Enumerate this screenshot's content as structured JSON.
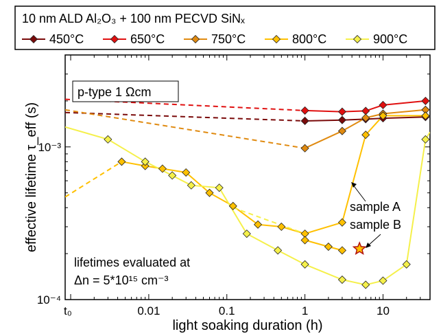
{
  "chart_data": {
    "type": "line",
    "title": "",
    "legend_title": "10 nm ALD Al₂O₃ + 100 nm PECVD SiNₓ",
    "legend_placement": "top",
    "xlabel": "light soaking duration (h)",
    "ylabel": "effective lifetime  τ_eff (s)",
    "x_scale": "log",
    "y_scale": "log",
    "xlim": [
      0.00085,
      40
    ],
    "ylim": [
      0.0001,
      0.004
    ],
    "x_tick_labels": [
      "t₀",
      "0.01",
      "0.1",
      "1",
      "10"
    ],
    "y_tick_labels": [
      "10⁻⁴",
      "10⁻³"
    ],
    "grid": false,
    "series": [
      {
        "name": "450°C",
        "color": "#7a0a0a",
        "marker": "diamond",
        "dashed": {
          "x": [
            0.00085,
            1
          ],
          "y": [
            0.00168,
            0.00148
          ]
        },
        "solid": {
          "x": [
            1,
            3,
            6,
            10,
            35
          ],
          "y": [
            0.00148,
            0.0015,
            0.00152,
            0.00154,
            0.00157
          ]
        }
      },
      {
        "name": "650°C",
        "color": "#e01010",
        "marker": "diamond",
        "dashed": {
          "x": [
            0.00085,
            1
          ],
          "y": [
            0.00205,
            0.00173
          ]
        },
        "solid": {
          "x": [
            1,
            3,
            6,
            10,
            35
          ],
          "y": [
            0.00173,
            0.0017,
            0.00172,
            0.00188,
            0.002
          ]
        }
      },
      {
        "name": "750°C",
        "color": "#e08a10",
        "marker": "diamond",
        "dashed": {
          "x": [
            0.00085,
            1
          ],
          "y": [
            0.00175,
            0.00098
          ]
        },
        "solid": {
          "x": [
            1,
            3,
            6,
            10,
            35
          ],
          "y": [
            0.00098,
            0.00127,
            0.00155,
            0.00165,
            0.00175
          ]
        }
      },
      {
        "name": "800°C",
        "color": "#ffc000",
        "marker": "diamond",
        "dashed": {
          "x": [
            0.00085,
            0.0045
          ],
          "y": [
            0.00047,
            0.0008
          ]
        },
        "solid_A": {
          "x": [
            0.0045,
            0.009,
            0.015,
            0.03,
            0.06,
            0.12,
            0.25,
            0.5,
            1,
            3,
            6,
            10,
            35
          ],
          "y": [
            0.0008,
            0.00075,
            0.00072,
            0.00068,
            0.0005,
            0.00041,
            0.00031,
            0.0003,
            0.00027,
            0.00032,
            0.0012,
            0.0016,
            0.0016
          ]
        },
        "solid_B": {
          "x": [
            1,
            2,
            3
          ],
          "y": [
            0.000245,
            0.000222,
            0.00021
          ]
        },
        "star": {
          "x": 5,
          "y": 0.000215
        }
      },
      {
        "name": "900°C",
        "color": "#f5f04a",
        "marker": "diamond",
        "dashed": {
          "x": [
            0.12,
            1
          ],
          "y": [
            0.0004,
            0.00027
          ]
        },
        "solid": {
          "x": [
            0.00085,
            0.003,
            0.009,
            0.02,
            0.035,
            0.08,
            0.18,
            0.45,
            1,
            3,
            6,
            10,
            20,
            35,
            40
          ],
          "y": [
            0.00135,
            0.00112,
            0.0008,
            0.00065,
            0.00056,
            0.00054,
            0.00027,
            0.00021,
            0.00017,
            0.000135,
            0.000125,
            0.000133,
            0.00017,
            0.00112,
            0.00125
          ]
        }
      }
    ],
    "annotations": [
      {
        "text": "p-type 1 Ωcm",
        "boxed": true
      },
      {
        "text": "sample A"
      },
      {
        "text": "sample B"
      },
      {
        "text": "lifetimes evaluated at"
      },
      {
        "text": "Δn = 5*10¹⁵ cm⁻³"
      }
    ]
  }
}
